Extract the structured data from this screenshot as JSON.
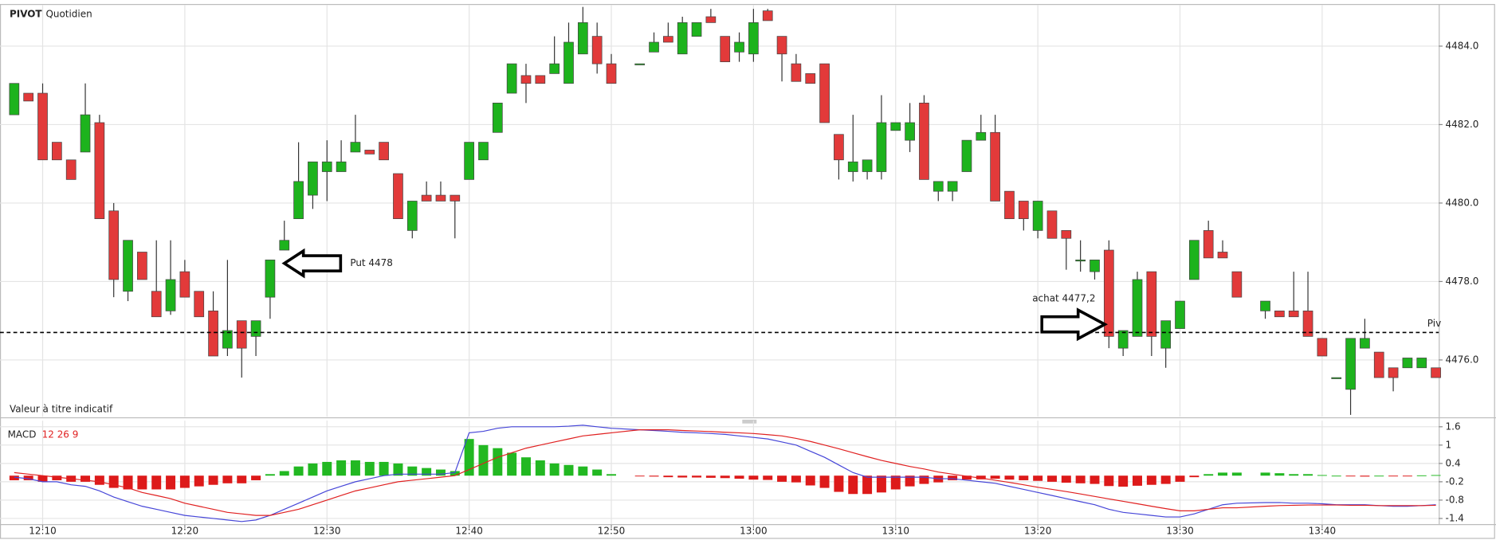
{
  "chart_data": [
    {
      "type": "candlestick",
      "title": "PIVOT",
      "subtitle": "Quotidien",
      "footnote": "Valeur à titre indicatif",
      "up_color": "#1db31d",
      "down_color": "#e23a3a",
      "grid": true,
      "ylim": [
        4474.55,
        4485.05
      ],
      "yticks": [
        {
          "value": 4476,
          "label": "4476.0"
        },
        {
          "value": 4478,
          "label": "4478.0"
        },
        {
          "value": 4480,
          "label": "4480.0"
        },
        {
          "value": 4482,
          "label": "4482.0"
        },
        {
          "value": 4484,
          "label": "4484.0"
        }
      ],
      "xlim": [
        "12:07",
        "13:48"
      ],
      "pivot": {
        "label": "Piv",
        "value": 4476.7
      },
      "annotations": [
        "Put 4478",
        "achat 4477,2"
      ],
      "x": [
        "12:08",
        "12:09",
        "12:10",
        "12:11",
        "12:12",
        "12:13",
        "12:14",
        "12:15",
        "12:16",
        "12:17",
        "12:18",
        "12:19",
        "12:20",
        "12:21",
        "12:22",
        "12:23",
        "12:24",
        "12:25",
        "12:26",
        "12:27",
        "12:28",
        "12:29",
        "12:30",
        "12:31",
        "12:32",
        "12:33",
        "12:34",
        "12:35",
        "12:36",
        "12:37",
        "12:38",
        "12:39",
        "12:40",
        "12:41",
        "12:42",
        "12:43",
        "12:44",
        "12:45",
        "12:46",
        "12:47",
        "12:48",
        "12:49",
        "12:50",
        "12:52",
        "12:53",
        "12:54",
        "12:55",
        "12:56",
        "12:57",
        "12:58",
        "12:59",
        "13:00",
        "13:01",
        "13:02",
        "13:03",
        "13:04",
        "13:05",
        "13:06",
        "13:07",
        "13:08",
        "13:09",
        "13:10",
        "13:11",
        "13:12",
        "13:13",
        "13:14",
        "13:15",
        "13:16",
        "13:17",
        "13:18",
        "13:19",
        "13:20",
        "13:21",
        "13:22",
        "13:23",
        "13:24",
        "13:25",
        "13:26",
        "13:27",
        "13:28",
        "13:29",
        "13:30",
        "13:31",
        "13:32",
        "13:33",
        "13:34",
        "13:36",
        "13:37",
        "13:38",
        "13:39",
        "13:40",
        "13:41",
        "13:42",
        "13:43",
        "13:44",
        "13:45",
        "13:46",
        "13:47",
        "13:48"
      ],
      "open": [
        4482.25,
        4482.8,
        4482.8,
        4481.55,
        4481.1,
        4481.3,
        4482.05,
        4479.8,
        4477.75,
        4478.75,
        4477.75,
        4477.25,
        4478.25,
        4477.75,
        4477.25,
        4476.3,
        4477.0,
        4476.6,
        4477.6,
        4478.8,
        4479.6,
        4480.2,
        4480.8,
        4480.8,
        4481.3,
        4481.35,
        4481.55,
        4480.75,
        4479.3,
        4480.2,
        4480.2,
        4480.2,
        4480.6,
        4481.1,
        4481.8,
        4482.8,
        4483.25,
        4483.25,
        4483.3,
        4483.05,
        4483.8,
        4484.25,
        4483.55,
        4483.55,
        4483.85,
        4484.25,
        4483.8,
        4484.25,
        4484.75,
        4484.25,
        4483.85,
        4483.8,
        4484.9,
        4484.25,
        4483.55,
        4483.3,
        4483.55,
        4481.75,
        4480.8,
        4480.8,
        4480.8,
        4481.85,
        4481.6,
        4482.55,
        4480.3,
        4480.3,
        4480.8,
        4481.6,
        4481.8,
        4480.3,
        4480.05,
        4479.3,
        4479.8,
        4479.3,
        4478.55,
        4478.25,
        4478.8,
        4476.3,
        4476.6,
        4478.25,
        4476.3,
        4476.8,
        4478.05,
        4479.3,
        4478.75,
        4478.25,
        4477.25,
        4477.25,
        4477.25,
        4477.25,
        4476.55,
        4475.55,
        4475.25,
        4476.3,
        4476.2,
        4475.8,
        4475.8,
        4475.8,
        4475.8
      ],
      "high": [
        4483.05,
        4482.8,
        4483.05,
        4481.55,
        4481.1,
        4483.05,
        4482.25,
        4480.0,
        4479.05,
        4478.75,
        4479.05,
        4479.05,
        4478.55,
        4477.75,
        4477.75,
        4478.55,
        4477.0,
        4477.0,
        4478.55,
        4479.55,
        4481.55,
        4481.05,
        4481.6,
        4481.6,
        4482.25,
        4481.35,
        4481.55,
        4480.75,
        4480.05,
        4480.55,
        4480.55,
        4480.2,
        4481.55,
        4481.55,
        4482.55,
        4483.55,
        4483.55,
        4483.25,
        4484.25,
        4484.6,
        4485.0,
        4484.6,
        4483.8,
        4483.55,
        4484.35,
        4484.6,
        4484.75,
        4484.6,
        4484.95,
        4484.25,
        4484.35,
        4484.95,
        4484.95,
        4484.25,
        4483.8,
        4483.3,
        4483.55,
        4481.75,
        4482.25,
        4481.1,
        4482.75,
        4482.05,
        4482.55,
        4482.75,
        4480.55,
        4480.55,
        4481.6,
        4482.25,
        4482.25,
        4480.3,
        4480.05,
        4480.05,
        4479.8,
        4479.3,
        4479.05,
        4478.55,
        4479.05,
        4476.75,
        4478.25,
        4478.25,
        4477.0,
        4477.5,
        4479.05,
        4479.55,
        4479.05,
        4478.25,
        4477.5,
        4477.25,
        4478.25,
        4478.25,
        4476.55,
        4475.55,
        4476.55,
        4477.05,
        4476.2,
        4475.8,
        4476.05,
        4476.05,
        4475.8
      ],
      "low": [
        4482.25,
        4482.6,
        4481.1,
        4481.1,
        4480.6,
        4481.3,
        4479.6,
        4477.6,
        4477.5,
        4478.05,
        4477.1,
        4477.15,
        4477.6,
        4477.1,
        4476.1,
        4476.1,
        4475.55,
        4476.1,
        4477.05,
        4478.8,
        4479.6,
        4479.85,
        4480.05,
        4480.8,
        4481.3,
        4481.25,
        4481.1,
        4479.6,
        4479.1,
        4480.05,
        4480.05,
        4479.1,
        4480.6,
        4481.1,
        4481.8,
        4482.8,
        4482.55,
        4483.05,
        4483.3,
        4483.05,
        4483.8,
        4483.3,
        4483.05,
        4483.55,
        4483.85,
        4484.1,
        4483.8,
        4484.25,
        4484.6,
        4483.6,
        4483.6,
        4483.6,
        4484.65,
        4483.1,
        4483.1,
        4483.05,
        4482.05,
        4480.6,
        4480.55,
        4480.6,
        4480.6,
        4481.85,
        4481.3,
        4480.6,
        4480.05,
        4480.05,
        4480.8,
        4481.6,
        4480.05,
        4479.6,
        4479.3,
        4479.1,
        4479.1,
        4478.3,
        4478.25,
        4478.05,
        4476.3,
        4476.1,
        4476.6,
        4476.1,
        4475.8,
        4476.8,
        4478.05,
        4478.6,
        4478.6,
        4477.6,
        4477.05,
        4477.1,
        4477.1,
        4476.6,
        4476.1,
        4475.55,
        4474.6,
        4476.3,
        4475.55,
        4475.2,
        4475.8,
        4475.8,
        4475.55
      ],
      "close": [
        4483.05,
        4482.6,
        4481.1,
        4481.1,
        4480.6,
        4482.25,
        4479.6,
        4478.05,
        4479.05,
        4478.05,
        4477.1,
        4478.05,
        4477.6,
        4477.1,
        4476.1,
        4476.75,
        4476.3,
        4477.0,
        4478.55,
        4479.05,
        4480.55,
        4481.05,
        4481.05,
        4481.05,
        4481.55,
        4481.25,
        4481.1,
        4479.6,
        4480.05,
        4480.05,
        4480.05,
        4480.05,
        4481.55,
        4481.55,
        4482.55,
        4483.55,
        4483.05,
        4483.05,
        4483.55,
        4484.1,
        4484.6,
        4483.55,
        4483.05,
        4483.55,
        4484.1,
        4484.1,
        4484.6,
        4484.6,
        4484.6,
        4483.6,
        4484.1,
        4484.6,
        4484.65,
        4483.8,
        4483.1,
        4483.05,
        4482.05,
        4481.1,
        4481.05,
        4481.1,
        4482.05,
        4482.05,
        4482.05,
        4480.6,
        4480.55,
        4480.55,
        4481.6,
        4481.8,
        4480.05,
        4479.6,
        4479.6,
        4480.05,
        4479.1,
        4479.1,
        4478.55,
        4478.55,
        4476.6,
        4476.75,
        4478.05,
        4476.6,
        4477.0,
        4477.5,
        4479.05,
        4478.6,
        4478.6,
        4477.6,
        4477.5,
        4477.1,
        4477.1,
        4476.6,
        4476.1,
        4475.55,
        4476.55,
        4476.55,
        4475.55,
        4475.55,
        4476.05,
        4476.05,
        4475.55
      ]
    },
    {
      "type": "macd",
      "title": "MACD",
      "subtitle": "12 26 9",
      "grid": true,
      "ylim": [
        -1.6,
        1.8
      ],
      "yticks": [
        -1.4,
        -0.8,
        -0.2,
        0.4,
        1,
        1.6
      ],
      "xlim": [
        "12:07",
        "13:48"
      ],
      "xticks": [
        "12:10",
        "12:20",
        "12:30",
        "12:40",
        "12:50",
        "13:00",
        "13:10",
        "13:20",
        "13:30",
        "13:40"
      ],
      "x": [
        "12:08",
        "12:09",
        "12:10",
        "12:11",
        "12:12",
        "12:13",
        "12:14",
        "12:15",
        "12:16",
        "12:17",
        "12:18",
        "12:19",
        "12:20",
        "12:21",
        "12:22",
        "12:23",
        "12:24",
        "12:25",
        "12:26",
        "12:27",
        "12:28",
        "12:29",
        "12:30",
        "12:31",
        "12:32",
        "12:33",
        "12:34",
        "12:35",
        "12:36",
        "12:37",
        "12:38",
        "12:39",
        "12:40",
        "12:41",
        "12:42",
        "12:43",
        "12:44",
        "12:45",
        "12:46",
        "12:47",
        "12:48",
        "12:49",
        "12:50",
        "12:52",
        "12:53",
        "12:54",
        "12:55",
        "12:56",
        "12:57",
        "12:58",
        "12:59",
        "13:00",
        "13:01",
        "13:02",
        "13:03",
        "13:04",
        "13:05",
        "13:06",
        "13:07",
        "13:08",
        "13:09",
        "13:10",
        "13:11",
        "13:12",
        "13:13",
        "13:14",
        "13:15",
        "13:16",
        "13:17",
        "13:18",
        "13:19",
        "13:20",
        "13:21",
        "13:22",
        "13:23",
        "13:24",
        "13:25",
        "13:26",
        "13:27",
        "13:28",
        "13:29",
        "13:30",
        "13:31",
        "13:32",
        "13:33",
        "13:34",
        "13:36",
        "13:37",
        "13:38",
        "13:39",
        "13:40",
        "13:41",
        "13:42",
        "13:43",
        "13:44",
        "13:45",
        "13:46",
        "13:47",
        "13:48"
      ],
      "series": [
        {
          "kind": "bar",
          "color": "#22b822",
          "down_color": "#dd1a1a",
          "values": [
            -0.15,
            -0.15,
            -0.2,
            -0.15,
            -0.2,
            -0.2,
            -0.3,
            -0.4,
            -0.45,
            -0.45,
            -0.45,
            -0.45,
            -0.4,
            -0.35,
            -0.3,
            -0.25,
            -0.25,
            -0.15,
            0.05,
            0.15,
            0.3,
            0.4,
            0.45,
            0.5,
            0.5,
            0.45,
            0.45,
            0.4,
            0.3,
            0.25,
            0.2,
            0.15,
            1.2,
            1.0,
            0.9,
            0.75,
            0.6,
            0.5,
            0.4,
            0.35,
            0.3,
            0.2,
            0.05,
            -0.02,
            -0.03,
            -0.05,
            -0.06,
            -0.06,
            -0.07,
            -0.08,
            -0.1,
            -0.13,
            -0.14,
            -0.2,
            -0.22,
            -0.32,
            -0.4,
            -0.53,
            -0.6,
            -0.6,
            -0.55,
            -0.45,
            -0.35,
            -0.27,
            -0.22,
            -0.15,
            -0.13,
            -0.12,
            -0.1,
            -0.13,
            -0.15,
            -0.17,
            -0.2,
            -0.23,
            -0.25,
            -0.27,
            -0.34,
            -0.36,
            -0.33,
            -0.3,
            -0.27,
            -0.2,
            -0.05,
            0.05,
            0.1,
            0.1,
            0.1,
            0.08,
            0.05,
            0.05,
            0.02,
            0,
            -0.02,
            -0.03,
            0,
            -0.02,
            -0.02,
            0.01,
            0.02
          ]
        },
        {
          "kind": "line",
          "color": "#4646d8",
          "values": [
            -0.05,
            -0.1,
            -0.2,
            -0.2,
            -0.3,
            -0.35,
            -0.5,
            -0.7,
            -0.85,
            -1.0,
            -1.1,
            -1.2,
            -1.3,
            -1.35,
            -1.4,
            -1.45,
            -1.5,
            -1.45,
            -1.3,
            -1.1,
            -0.9,
            -0.7,
            -0.5,
            -0.35,
            -0.2,
            -0.1,
            0,
            0.05,
            0.05,
            0.05,
            0.05,
            0.1,
            1.4,
            1.45,
            1.55,
            1.6,
            1.6,
            1.6,
            1.6,
            1.62,
            1.65,
            1.6,
            1.55,
            1.5,
            1.48,
            1.45,
            1.42,
            1.4,
            1.38,
            1.35,
            1.3,
            1.25,
            1.2,
            1.1,
            1.0,
            0.8,
            0.6,
            0.35,
            0.1,
            -0.05,
            -0.05,
            -0.05,
            -0.05,
            -0.05,
            -0.1,
            -0.1,
            -0.15,
            -0.2,
            -0.25,
            -0.35,
            -0.45,
            -0.55,
            -0.65,
            -0.75,
            -0.85,
            -0.95,
            -1.1,
            -1.2,
            -1.25,
            -1.3,
            -1.35,
            -1.35,
            -1.25,
            -1.1,
            -0.95,
            -0.9,
            -0.88,
            -0.88,
            -0.9,
            -0.9,
            -0.92,
            -0.95,
            -0.95,
            -0.95,
            -0.98,
            -1.0,
            -1.0,
            -0.98,
            -0.95
          ]
        },
        {
          "kind": "line",
          "color": "#e02020",
          "values": [
            0.1,
            0.05,
            0,
            -0.05,
            -0.1,
            -0.15,
            -0.2,
            -0.3,
            -0.4,
            -0.55,
            -0.65,
            -0.75,
            -0.9,
            -1.0,
            -1.1,
            -1.2,
            -1.25,
            -1.3,
            -1.3,
            -1.2,
            -1.1,
            -0.95,
            -0.8,
            -0.65,
            -0.5,
            -0.4,
            -0.3,
            -0.2,
            -0.15,
            -0.1,
            -0.05,
            0,
            0.2,
            0.4,
            0.6,
            0.75,
            0.9,
            1.0,
            1.1,
            1.2,
            1.3,
            1.35,
            1.4,
            1.5,
            1.5,
            1.5,
            1.48,
            1.46,
            1.44,
            1.42,
            1.4,
            1.38,
            1.34,
            1.3,
            1.22,
            1.12,
            1.0,
            0.88,
            0.75,
            0.62,
            0.5,
            0.4,
            0.3,
            0.22,
            0.12,
            0.05,
            -0.02,
            -0.08,
            -0.15,
            -0.22,
            -0.3,
            -0.38,
            -0.45,
            -0.52,
            -0.6,
            -0.68,
            -0.76,
            -0.84,
            -0.92,
            -1.0,
            -1.08,
            -1.15,
            -1.15,
            -1.1,
            -1.05,
            -1.05,
            -1.0,
            -0.98,
            -0.97,
            -0.96,
            -0.96,
            -0.96,
            -0.97,
            -0.97,
            -0.98,
            -0.98,
            -0.98,
            -0.98,
            -0.97
          ]
        }
      ]
    }
  ]
}
